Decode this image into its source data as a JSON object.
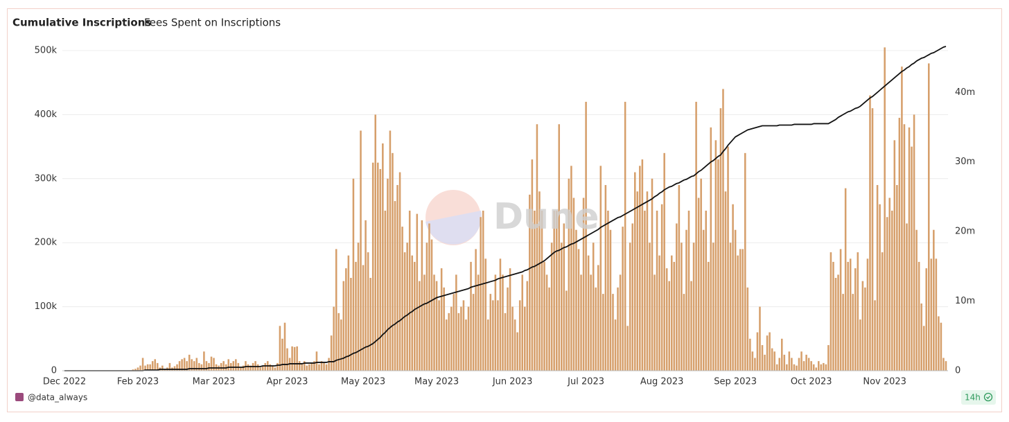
{
  "tabs": [
    "Cumulative Inscriptions",
    "Fees Spent on Inscriptions"
  ],
  "author": "@data_always",
  "age": "14h",
  "watermark": "Dune",
  "chart_data": {
    "type": "combo",
    "categories": [
      "Dec 2022",
      null,
      null,
      null,
      null,
      null,
      null,
      null,
      null,
      null,
      null,
      null,
      null,
      null,
      null,
      null,
      null,
      null,
      null,
      null,
      null,
      null,
      null,
      null,
      null,
      null,
      null,
      null,
      null,
      null,
      "Feb 2023",
      null,
      null,
      null,
      null,
      null,
      null,
      null,
      null,
      null,
      null,
      null,
      null,
      null,
      null,
      null,
      null,
      null,
      null,
      null,
      null,
      null,
      null,
      null,
      null,
      null,
      null,
      null,
      null,
      null,
      null,
      "Mar 2023",
      null,
      null,
      null,
      null,
      null,
      null,
      null,
      null,
      null,
      null,
      null,
      null,
      null,
      null,
      null,
      null,
      null,
      null,
      null,
      null,
      null,
      null,
      null,
      null,
      null,
      null,
      null,
      null,
      null,
      "Apr 2023",
      null,
      null,
      null,
      null,
      null,
      null,
      null,
      null,
      null,
      null,
      null,
      null,
      null,
      null,
      null,
      null,
      null,
      null,
      null,
      null,
      null,
      null,
      null,
      null,
      null,
      null,
      null,
      null,
      null,
      null,
      "May 2023",
      null,
      null,
      null,
      null,
      null,
      null,
      null,
      null,
      null,
      null,
      null,
      null,
      null,
      null,
      null,
      null,
      null,
      null,
      null,
      null,
      null,
      null,
      null,
      null,
      null,
      null,
      null,
      null,
      null,
      "May 2023",
      null,
      null,
      null,
      null,
      null,
      null,
      null,
      null,
      null,
      null,
      null,
      null,
      null,
      null,
      null,
      null,
      null,
      null,
      null,
      null,
      null,
      null,
      null,
      null,
      null,
      null,
      null,
      null,
      null,
      null,
      "Jun 2023",
      null,
      null,
      null,
      null,
      null,
      null,
      null,
      null,
      null,
      null,
      null,
      null,
      null,
      null,
      null,
      null,
      null,
      null,
      null,
      null,
      null,
      null,
      null,
      null,
      null,
      null,
      null,
      null,
      null,
      "Jul 2023",
      null,
      null,
      null,
      null,
      null,
      null,
      null,
      null,
      null,
      null,
      null,
      null,
      null,
      null,
      null,
      null,
      null,
      null,
      null,
      null,
      null,
      null,
      null,
      null,
      null,
      null,
      null,
      null,
      null,
      null,
      "Aug 2023",
      null,
      null,
      null,
      null,
      null,
      null,
      null,
      null,
      null,
      null,
      null,
      null,
      null,
      null,
      null,
      null,
      null,
      null,
      null,
      null,
      null,
      null,
      null,
      null,
      null,
      null,
      null,
      null,
      null,
      "Sep 2023",
      null,
      null,
      null,
      null,
      null,
      null,
      null,
      null,
      null,
      null,
      null,
      null,
      null,
      null,
      null,
      null,
      null,
      null,
      null,
      null,
      null,
      null,
      null,
      null,
      null,
      null,
      null,
      null,
      null,
      null,
      "Oct 2023",
      null,
      null,
      null,
      null,
      null,
      null,
      null,
      null,
      null,
      null,
      null,
      null,
      null,
      null,
      null,
      null,
      null,
      null,
      null,
      null,
      null,
      null,
      null,
      null,
      null,
      null,
      null,
      null,
      null,
      "Nov 2023",
      null,
      null,
      null,
      null,
      null,
      null,
      null,
      null,
      null,
      null,
      null,
      null,
      null,
      null,
      null,
      null,
      null,
      null,
      null,
      null,
      null,
      null,
      null,
      null,
      null
    ],
    "series": [
      {
        "type": "bar",
        "color": "#d69f6b",
        "values": [
          0,
          0,
          0,
          0,
          0,
          0,
          0,
          0,
          0,
          0,
          0,
          0,
          0,
          0,
          0,
          0,
          0,
          0,
          0,
          0,
          0,
          0,
          0,
          0,
          0,
          0,
          0,
          0,
          2000,
          3000,
          5000,
          8000,
          20000,
          8000,
          10000,
          10000,
          15000,
          18000,
          12000,
          5000,
          8000,
          3000,
          5000,
          12000,
          5000,
          7000,
          10000,
          15000,
          18000,
          20000,
          15000,
          25000,
          18000,
          15000,
          20000,
          12000,
          10000,
          30000,
          15000,
          12000,
          22000,
          20000,
          10000,
          8000,
          12000,
          15000,
          10000,
          18000,
          12000,
          15000,
          18000,
          12000,
          5000,
          8000,
          15000,
          10000,
          8000,
          12000,
          15000,
          10000,
          5000,
          8000,
          12000,
          15000,
          10000,
          8000,
          5000,
          12000,
          70000,
          50000,
          75000,
          35000,
          20000,
          38000,
          37000,
          38000,
          15000,
          10000,
          15000,
          8000,
          10000,
          12000,
          15000,
          30000,
          10000,
          15000,
          12000,
          10000,
          20000,
          55000,
          100000,
          190000,
          90000,
          80000,
          140000,
          160000,
          180000,
          145000,
          300000,
          170000,
          200000,
          375000,
          165000,
          235000,
          185000,
          145000,
          325000,
          400000,
          325000,
          315000,
          355000,
          250000,
          300000,
          375000,
          340000,
          265000,
          290000,
          310000,
          225000,
          185000,
          200000,
          250000,
          180000,
          170000,
          245000,
          140000,
          235000,
          150000,
          200000,
          230000,
          205000,
          150000,
          140000,
          110000,
          160000,
          130000,
          80000,
          90000,
          100000,
          120000,
          150000,
          90000,
          100000,
          110000,
          80000,
          100000,
          170000,
          120000,
          190000,
          150000,
          240000,
          250000,
          175000,
          80000,
          120000,
          110000,
          150000,
          110000,
          175000,
          150000,
          90000,
          130000,
          160000,
          100000,
          80000,
          60000,
          110000,
          150000,
          100000,
          140000,
          275000,
          330000,
          250000,
          385000,
          280000,
          250000,
          170000,
          150000,
          130000,
          200000,
          250000,
          250000,
          385000,
          200000,
          230000,
          125000,
          300000,
          320000,
          270000,
          220000,
          190000,
          150000,
          270000,
          420000,
          180000,
          150000,
          200000,
          130000,
          165000,
          320000,
          120000,
          290000,
          250000,
          220000,
          120000,
          80000,
          130000,
          150000,
          225000,
          420000,
          70000,
          200000,
          230000,
          310000,
          280000,
          320000,
          330000,
          250000,
          280000,
          200000,
          300000,
          150000,
          250000,
          180000,
          260000,
          340000,
          160000,
          140000,
          180000,
          170000,
          230000,
          290000,
          200000,
          120000,
          220000,
          250000,
          140000,
          200000,
          420000,
          270000,
          300000,
          220000,
          250000,
          170000,
          380000,
          200000,
          360000,
          330000,
          410000,
          440000,
          280000,
          350000,
          200000,
          260000,
          220000,
          180000,
          190000,
          190000,
          340000,
          130000,
          50000,
          30000,
          20000,
          60000,
          100000,
          40000,
          25000,
          55000,
          60000,
          35000,
          30000,
          10000,
          20000,
          50000,
          25000,
          10000,
          30000,
          20000,
          10000,
          8000,
          20000,
          30000,
          15000,
          25000,
          20000,
          15000,
          10000,
          5000,
          15000,
          10000,
          12000,
          10000,
          40000,
          185000,
          170000,
          145000,
          150000,
          190000,
          120000,
          285000,
          170000,
          175000,
          120000,
          160000,
          185000,
          80000,
          140000,
          130000,
          175000,
          430000,
          410000,
          110000,
          290000,
          260000,
          185000,
          505000,
          240000,
          270000,
          250000,
          360000,
          290000,
          395000,
          475000,
          385000,
          230000,
          380000,
          350000,
          400000,
          220000,
          170000,
          105000,
          70000,
          160000,
          480000,
          175000,
          220000,
          175000,
          85000,
          75000,
          20000,
          15000
        ]
      },
      {
        "type": "line",
        "color": "#111111",
        "axis": "y2",
        "values": [
          0,
          0,
          0,
          0,
          0,
          0,
          0,
          0,
          0,
          0,
          0,
          0,
          0,
          0,
          0,
          0,
          0,
          0,
          0,
          0,
          0,
          0,
          0,
          0,
          0,
          0,
          0,
          0,
          0,
          0,
          0,
          0,
          0,
          100000,
          100000,
          100000,
          100000,
          100000,
          100000,
          200000,
          200000,
          200000,
          200000,
          200000,
          200000,
          200000,
          200000,
          200000,
          200000,
          200000,
          200000,
          300000,
          300000,
          300000,
          300000,
          300000,
          300000,
          300000,
          300000,
          400000,
          400000,
          400000,
          400000,
          400000,
          400000,
          400000,
          400000,
          500000,
          500000,
          500000,
          500000,
          500000,
          500000,
          500000,
          600000,
          600000,
          600000,
          600000,
          600000,
          600000,
          600000,
          700000,
          700000,
          700000,
          700000,
          700000,
          700000,
          800000,
          800000,
          900000,
          900000,
          900000,
          1000000,
          1000000,
          1000000,
          1000000,
          1000000,
          1000000,
          1100000,
          1100000,
          1100000,
          1100000,
          1100000,
          1200000,
          1200000,
          1200000,
          1200000,
          1200000,
          1300000,
          1300000,
          1300000,
          1500000,
          1600000,
          1700000,
          1800000,
          2000000,
          2100000,
          2300000,
          2500000,
          2600000,
          2800000,
          3000000,
          3200000,
          3400000,
          3500000,
          3700000,
          3900000,
          4200000,
          4500000,
          4800000,
          5200000,
          5500000,
          5900000,
          6200000,
          6500000,
          6700000,
          7000000,
          7200000,
          7500000,
          7800000,
          8000000,
          8300000,
          8500000,
          8800000,
          9000000,
          9200000,
          9400000,
          9600000,
          9700000,
          9900000,
          10100000,
          10300000,
          10500000,
          10600000,
          10700000,
          10800000,
          10900000,
          11000000,
          11100000,
          11200000,
          11300000,
          11400000,
          11500000,
          11600000,
          11700000,
          11800000,
          12000000,
          12100000,
          12200000,
          12300000,
          12400000,
          12500000,
          12600000,
          12700000,
          12800000,
          12900000,
          13000000,
          13200000,
          13300000,
          13400000,
          13500000,
          13600000,
          13700000,
          13800000,
          13900000,
          14000000,
          14100000,
          14200000,
          14400000,
          14500000,
          14700000,
          14900000,
          15000000,
          15200000,
          15400000,
          15600000,
          15800000,
          16100000,
          16400000,
          16700000,
          17000000,
          17200000,
          17300000,
          17500000,
          17700000,
          17800000,
          18000000,
          18200000,
          18300000,
          18500000,
          18700000,
          18900000,
          19100000,
          19300000,
          19500000,
          19700000,
          19900000,
          20100000,
          20300000,
          20600000,
          20800000,
          21000000,
          21200000,
          21400000,
          21600000,
          21800000,
          22000000,
          22100000,
          22300000,
          22500000,
          22700000,
          22900000,
          23100000,
          23300000,
          23500000,
          23700000,
          23900000,
          24100000,
          24300000,
          24500000,
          24700000,
          25000000,
          25200000,
          25500000,
          25700000,
          26000000,
          26200000,
          26400000,
          26500000,
          26700000,
          26900000,
          27000000,
          27200000,
          27400000,
          27500000,
          27700000,
          27900000,
          28000000,
          28300000,
          28600000,
          28800000,
          29100000,
          29400000,
          29700000,
          30000000,
          30200000,
          30500000,
          30800000,
          31000000,
          31500000,
          31900000,
          32400000,
          32800000,
          33200000,
          33600000,
          33800000,
          34000000,
          34200000,
          34400000,
          34600000,
          34700000,
          34800000,
          34900000,
          35000000,
          35100000,
          35200000,
          35200000,
          35200000,
          35200000,
          35200000,
          35200000,
          35200000,
          35300000,
          35300000,
          35300000,
          35300000,
          35300000,
          35300000,
          35400000,
          35400000,
          35400000,
          35400000,
          35400000,
          35400000,
          35400000,
          35400000,
          35500000,
          35500000,
          35500000,
          35500000,
          35500000,
          35500000,
          35500000,
          35700000,
          35900000,
          36100000,
          36400000,
          36600000,
          36800000,
          37000000,
          37200000,
          37300000,
          37500000,
          37700000,
          37800000,
          38000000,
          38300000,
          38600000,
          38900000,
          39200000,
          39400000,
          39700000,
          40000000,
          40300000,
          40600000,
          40900000,
          41200000,
          41500000,
          41800000,
          42100000,
          42400000,
          42700000,
          43000000,
          43200000,
          43500000,
          43700000,
          44000000,
          44200000,
          44500000,
          44700000,
          44900000,
          45000000,
          45200000,
          45400000,
          45600000,
          45700000,
          45900000,
          46100000,
          46300000,
          46500000,
          46600000
        ]
      }
    ],
    "ylim": [
      0,
      500000
    ],
    "yticks": [
      0,
      {
        "value": 100000,
        "label": "100k"
      },
      {
        "value": 200000,
        "label": "200k"
      },
      {
        "value": 300000,
        "label": "300k"
      },
      {
        "value": 400000,
        "label": "400k"
      },
      {
        "value": 500000,
        "label": "500k"
      }
    ],
    "y2lim": [
      0,
      46000000
    ],
    "y2ticks": [
      0,
      {
        "value": 10000000,
        "label": "10m"
      },
      {
        "value": 20000000,
        "label": "20m"
      },
      {
        "value": 30000000,
        "label": "30m"
      },
      {
        "value": 40000000,
        "label": "40m"
      }
    ],
    "grid": true
  }
}
